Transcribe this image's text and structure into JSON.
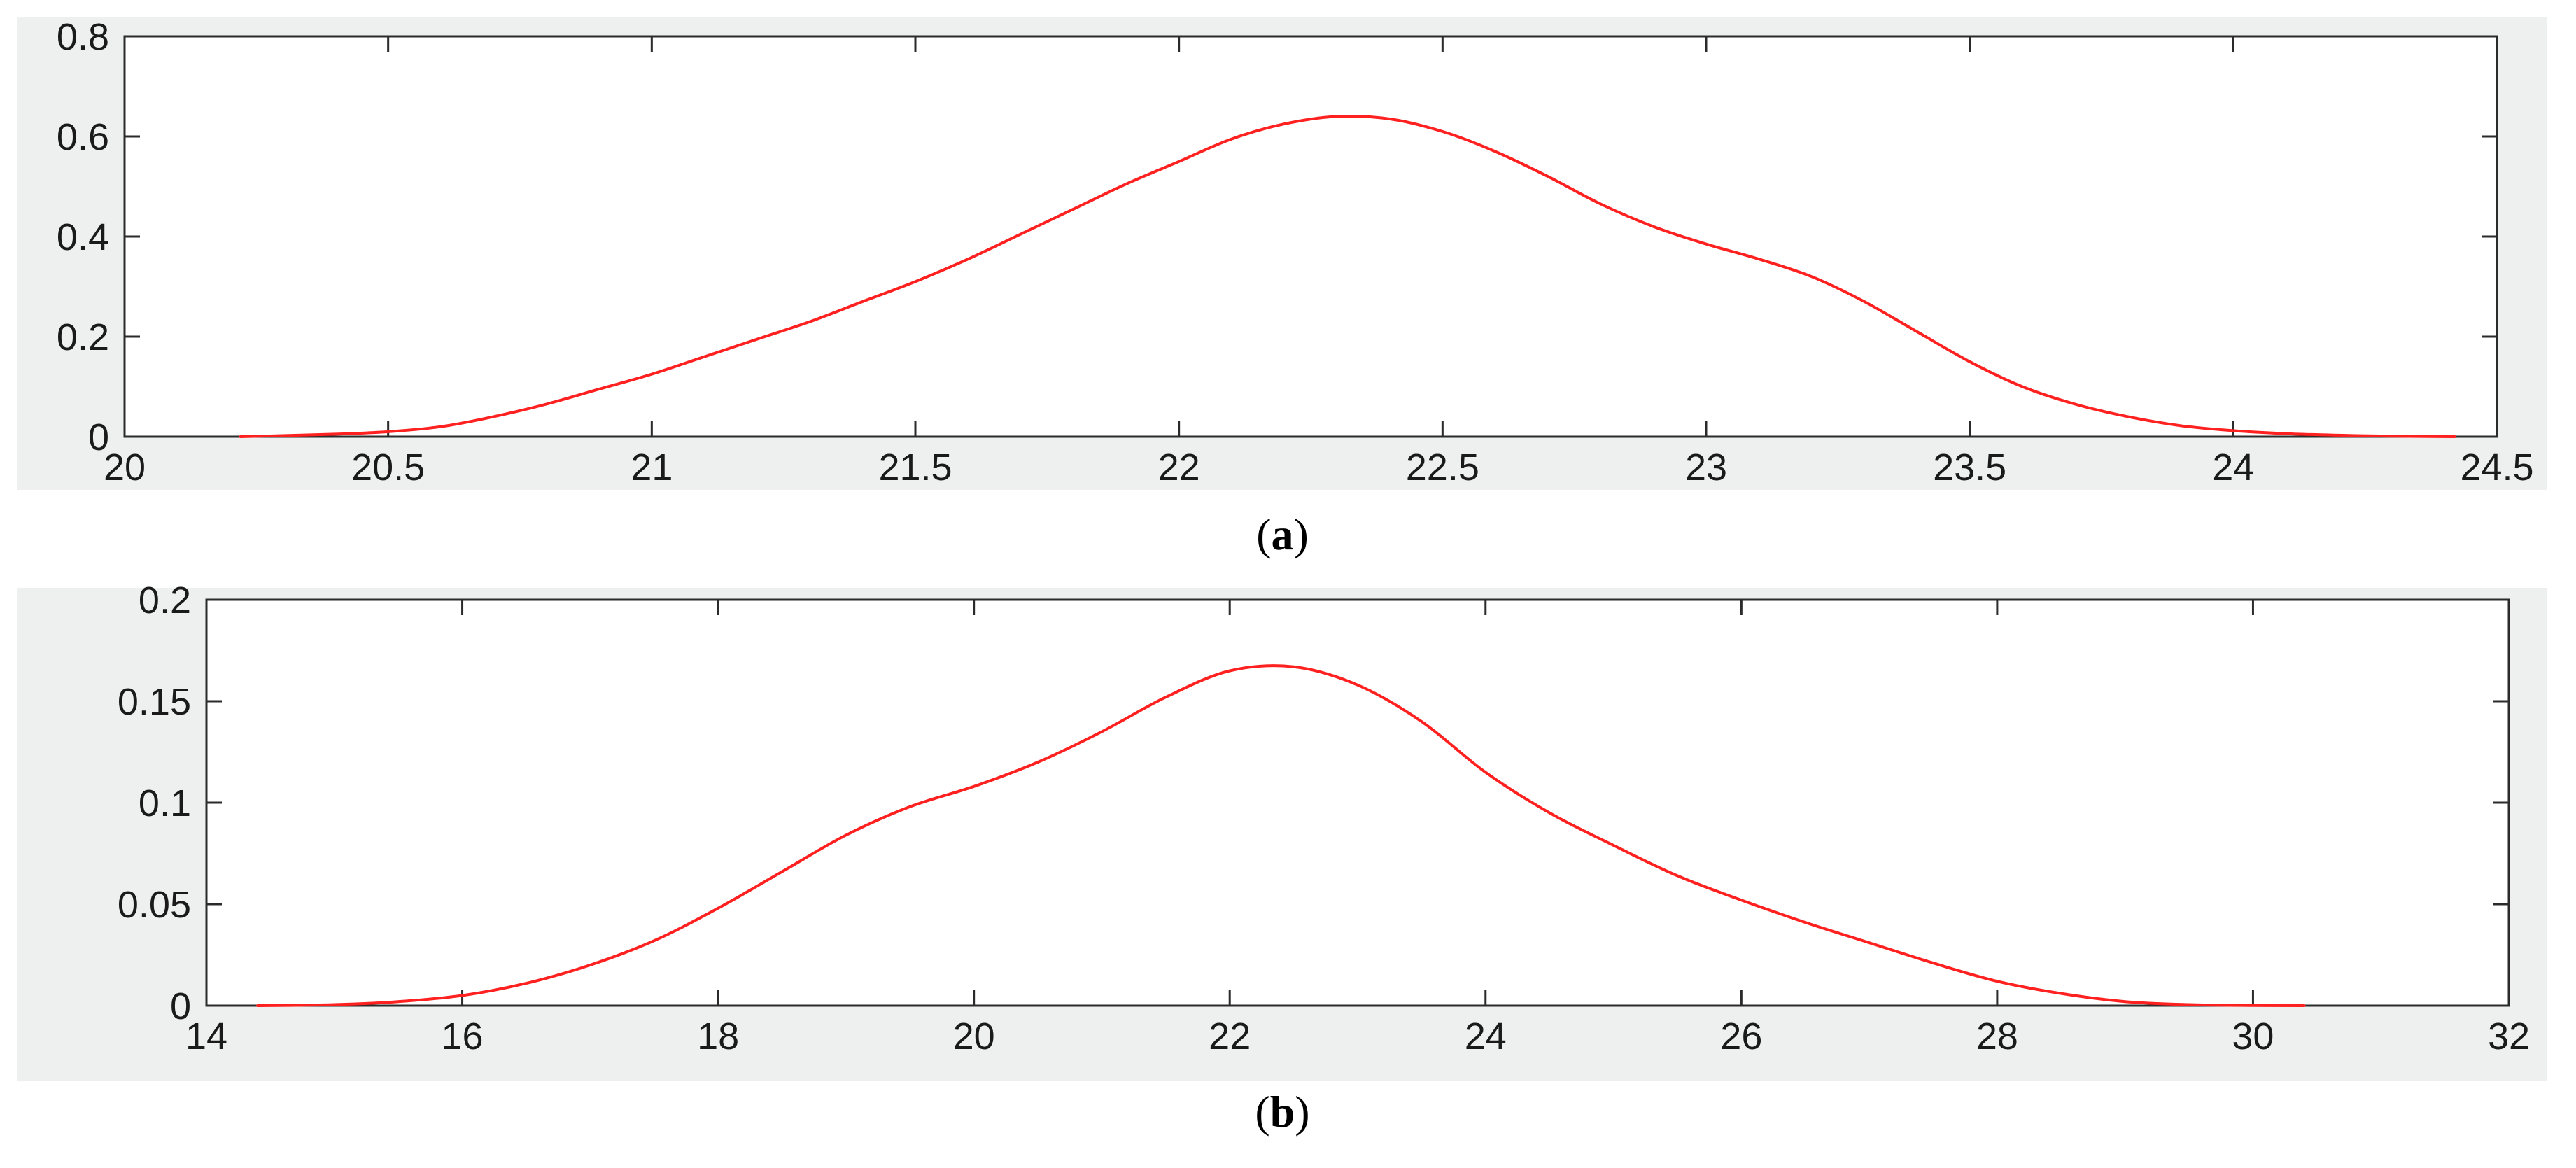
{
  "chart_data": [
    {
      "type": "line",
      "caption": "a",
      "title": "",
      "xlabel": "",
      "ylabel": "",
      "xlim": [
        20,
        24.5
      ],
      "ylim": [
        0,
        0.8
      ],
      "xticks": [
        "20",
        "20.5",
        "21",
        "21.5",
        "22",
        "22.5",
        "23",
        "23.5",
        "24",
        "24.5"
      ],
      "yticks": [
        "0",
        "0.2",
        "0.4",
        "0.6",
        "0.8"
      ],
      "grid": false,
      "series": [
        {
          "color": "#ff2020",
          "x": [
            20.22,
            20.4,
            20.5,
            20.6,
            20.7,
            20.8,
            20.9,
            21.0,
            21.1,
            21.2,
            21.3,
            21.4,
            21.5,
            21.6,
            21.7,
            21.8,
            21.9,
            22.0,
            22.1,
            22.2,
            22.3,
            22.4,
            22.5,
            22.6,
            22.7,
            22.8,
            22.9,
            23.0,
            23.1,
            23.2,
            23.3,
            23.4,
            23.5,
            23.6,
            23.7,
            23.8,
            23.9,
            24.0,
            24.1,
            24.2,
            24.3,
            24.42
          ],
          "y": [
            0.0,
            0.005,
            0.01,
            0.02,
            0.04,
            0.065,
            0.095,
            0.125,
            0.16,
            0.195,
            0.23,
            0.27,
            0.31,
            0.355,
            0.405,
            0.455,
            0.505,
            0.55,
            0.595,
            0.625,
            0.64,
            0.635,
            0.61,
            0.57,
            0.52,
            0.465,
            0.42,
            0.385,
            0.355,
            0.32,
            0.27,
            0.21,
            0.15,
            0.1,
            0.065,
            0.04,
            0.022,
            0.012,
            0.006,
            0.003,
            0.001,
            0.0
          ]
        }
      ]
    },
    {
      "type": "line",
      "caption": "b",
      "title": "",
      "xlabel": "",
      "ylabel": "",
      "xlim": [
        14,
        32
      ],
      "ylim": [
        0,
        0.2
      ],
      "xticks": [
        "14",
        "16",
        "18",
        "20",
        "22",
        "24",
        "26",
        "28",
        "30",
        "32"
      ],
      "yticks": [
        "0",
        "0.05",
        "0.1",
        "0.15",
        "0.2"
      ],
      "grid": false,
      "series": [
        {
          "color": "#ff2020",
          "x": [
            14.4,
            15.0,
            15.5,
            16.0,
            16.5,
            17.0,
            17.5,
            18.0,
            18.5,
            19.0,
            19.5,
            20.0,
            20.5,
            21.0,
            21.5,
            22.0,
            22.5,
            23.0,
            23.5,
            24.0,
            24.5,
            25.0,
            25.5,
            26.0,
            26.5,
            27.0,
            27.5,
            28.0,
            28.5,
            29.0,
            29.5,
            30.0,
            30.4
          ],
          "y": [
            0.0,
            0.0005,
            0.002,
            0.005,
            0.011,
            0.02,
            0.032,
            0.048,
            0.066,
            0.084,
            0.098,
            0.108,
            0.12,
            0.135,
            0.152,
            0.165,
            0.167,
            0.158,
            0.14,
            0.115,
            0.095,
            0.079,
            0.064,
            0.052,
            0.041,
            0.031,
            0.021,
            0.012,
            0.006,
            0.002,
            0.0005,
            0.0001,
            0.0
          ]
        }
      ]
    }
  ]
}
